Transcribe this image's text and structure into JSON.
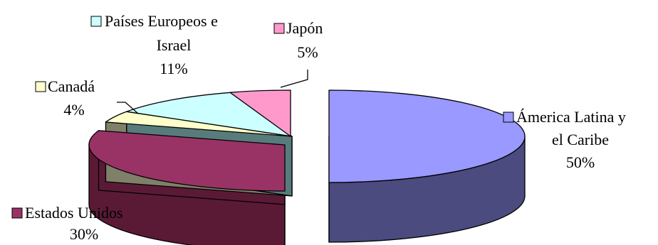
{
  "chart_data": {
    "type": "pie",
    "title": "",
    "exploded": true,
    "three_d": true,
    "categories": [
      "Ámerica Latina y el Caribe",
      "Estados Unidos",
      "Canadá",
      "Países Europeos e Israel",
      "Japón"
    ],
    "values": [
      50,
      30,
      4,
      11,
      5
    ],
    "data_labels": [
      "50%",
      "30%",
      "4%",
      "11%",
      "5%"
    ],
    "colors": [
      "#9999ff",
      "#993366",
      "#ffffcc",
      "#ccffff",
      "#ff99cc"
    ],
    "side_colors": [
      "#4b4b80",
      "#5a1a35",
      "#80806a",
      "#587c7c",
      "#804d66"
    ],
    "legend": "beside-labels",
    "label_lines": {
      "america_1": "Ámerica Latina y",
      "america_2": "el Caribe",
      "estados": "Estados Unidos",
      "canada": "Canadá",
      "paises_1": "Países Europeos e",
      "paises_2": "Israel",
      "japon": "Japón"
    }
  }
}
